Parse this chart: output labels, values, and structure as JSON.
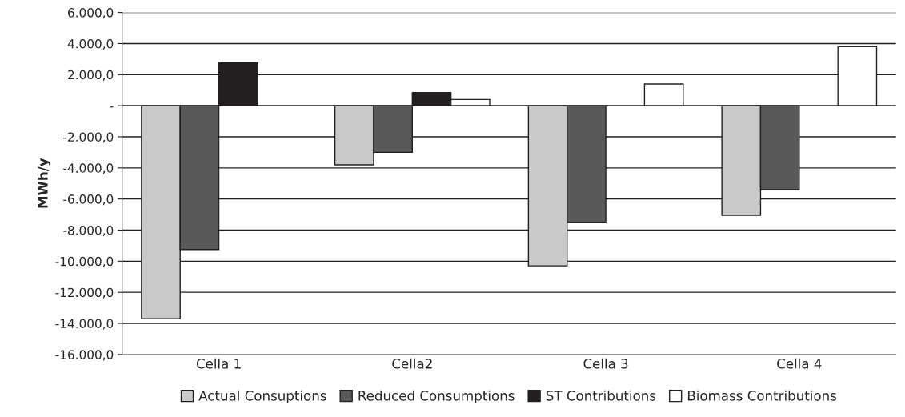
{
  "chart_data": {
    "type": "bar",
    "ylabel": "MWh/y",
    "categories": [
      "Cella 1",
      "Cella2",
      "Cella 3",
      "Cella 4"
    ],
    "series": [
      {
        "name": "Actual Consuptions",
        "color": "#c8c9cb",
        "values": [
          -13700,
          -3800,
          -10300,
          -7050
        ]
      },
      {
        "name": "Reduced Consumptions",
        "color": "#58595b",
        "values": [
          -9250,
          -3000,
          -7500,
          -5400
        ]
      },
      {
        "name": "ST Contributions",
        "color": "#231f20",
        "values": [
          2750,
          850,
          null,
          null
        ]
      },
      {
        "name": "Biomass Contributions",
        "color": "#ffffff",
        "values": [
          null,
          400,
          1400,
          3800
        ]
      }
    ],
    "ylim": [
      -16000,
      6000
    ],
    "yticks": [
      {
        "value": -16000,
        "label": "-16.000,0"
      },
      {
        "value": -14000,
        "label": "-14.000,0"
      },
      {
        "value": -12000,
        "label": "-12.000,0"
      },
      {
        "value": -10000,
        "label": "-10.000,0"
      },
      {
        "value": -8000,
        "label": "-8.000,0"
      },
      {
        "value": -6000,
        "label": "-6.000,0"
      },
      {
        "value": -4000,
        "label": "-4.000,0"
      },
      {
        "value": -2000,
        "label": "-2.000,0"
      },
      {
        "value": 0,
        "label": "-"
      },
      {
        "value": 2000,
        "label": "2.000,0"
      },
      {
        "value": 4000,
        "label": "4.000,0"
      },
      {
        "value": 6000,
        "label": "6.000,0"
      }
    ],
    "grid": "y",
    "legend": "bottom"
  }
}
